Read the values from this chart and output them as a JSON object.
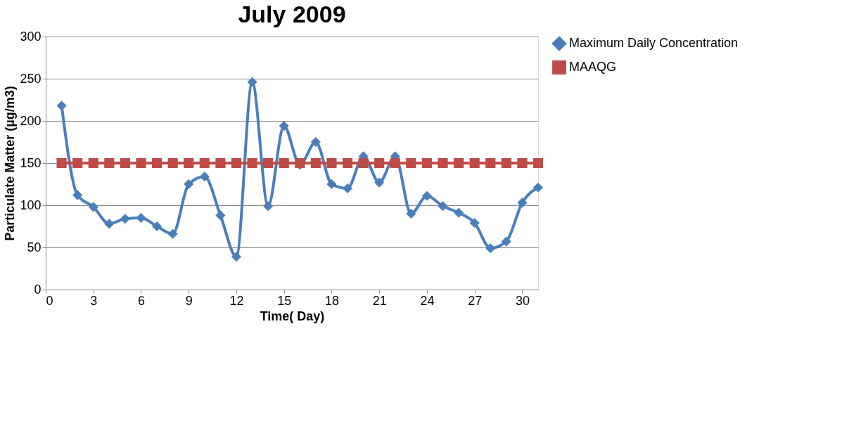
{
  "chart_data": {
    "type": "line",
    "title": "July 2009",
    "xlabel": "Time( Day)",
    "ylabel": "Particulate Matter (µg/m3)",
    "x": [
      1,
      2,
      3,
      4,
      5,
      6,
      7,
      8,
      9,
      10,
      11,
      12,
      13,
      14,
      15,
      16,
      17,
      18,
      19,
      20,
      21,
      22,
      23,
      24,
      25,
      26,
      27,
      28,
      29,
      30,
      31
    ],
    "series": [
      {
        "name": "Maximum Daily Concentration",
        "color": "#4a7ebb",
        "marker": "diamond",
        "values": [
          218,
          112,
          98,
          78,
          84,
          85,
          75,
          66,
          125,
          134,
          88,
          39,
          246,
          99,
          194,
          148,
          175,
          125,
          120,
          158,
          127,
          158,
          90,
          111,
          99,
          91,
          79,
          49,
          57,
          103,
          121
        ]
      },
      {
        "name": "MAAQG",
        "color": "#be4b48",
        "marker": "square",
        "values": [
          150,
          150,
          150,
          150,
          150,
          150,
          150,
          150,
          150,
          150,
          150,
          150,
          150,
          150,
          150,
          150,
          150,
          150,
          150,
          150,
          150,
          150,
          150,
          150,
          150,
          150,
          150,
          150,
          150,
          150,
          150
        ]
      }
    ],
    "xlim": [
      0,
      31
    ],
    "xticks": [
      0,
      3,
      6,
      9,
      12,
      15,
      18,
      21,
      24,
      27,
      30
    ],
    "ylim": [
      0,
      300
    ],
    "yticks": [
      0,
      50,
      100,
      150,
      200,
      250,
      300
    ],
    "grid": "y",
    "legend": "right",
    "line_style": "solid"
  }
}
